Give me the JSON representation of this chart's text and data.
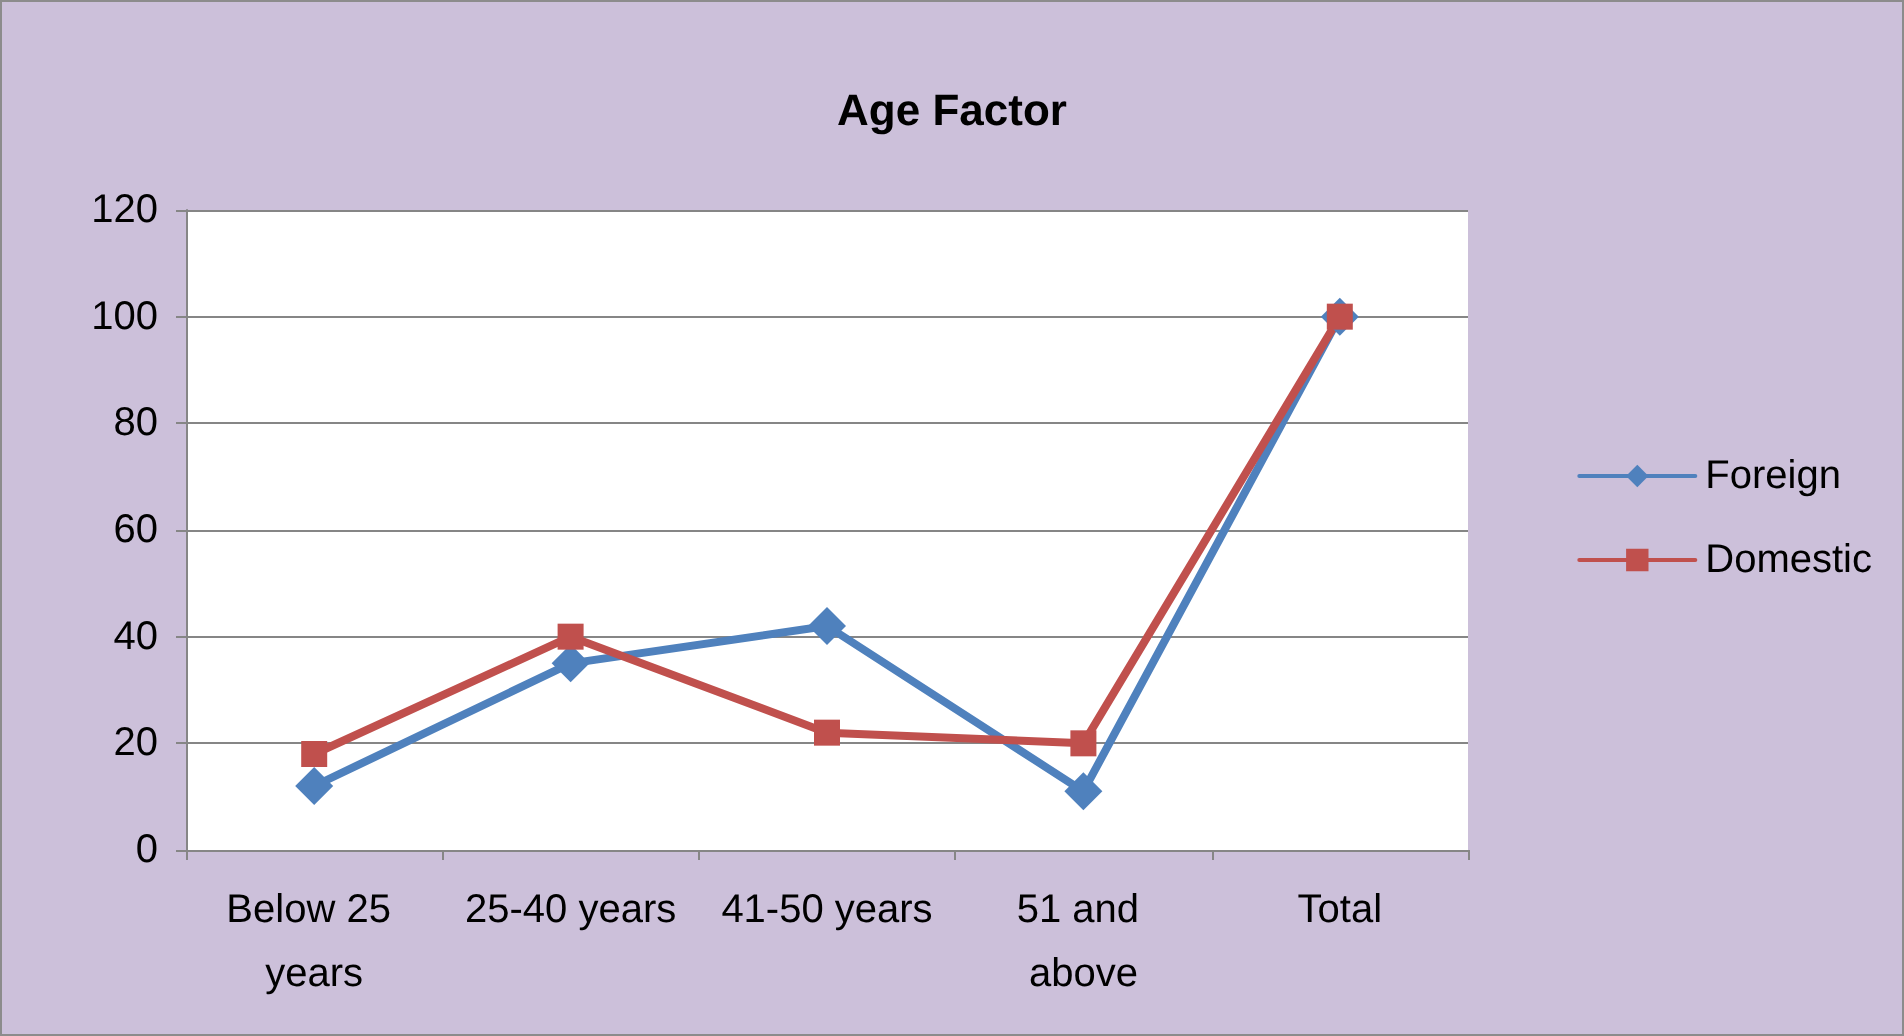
{
  "chart_data": {
    "type": "line",
    "title": "Age Factor",
    "categories": [
      "Below 25 years",
      "25-40 years",
      "41-50 years",
      "51 and above",
      "Total"
    ],
    "series": [
      {
        "name": "Foreign",
        "color": "#4f81bd",
        "marker": "diamond",
        "values": [
          12,
          35,
          42,
          11,
          100
        ]
      },
      {
        "name": "Domestic",
        "color": "#c0504d",
        "marker": "square",
        "values": [
          18,
          40,
          22,
          20,
          100
        ]
      }
    ],
    "ylim": [
      0,
      120
    ],
    "yticks": [
      0,
      20,
      40,
      60,
      80,
      100,
      120
    ],
    "grid": "y",
    "legend": "right",
    "line_style": "solid"
  }
}
